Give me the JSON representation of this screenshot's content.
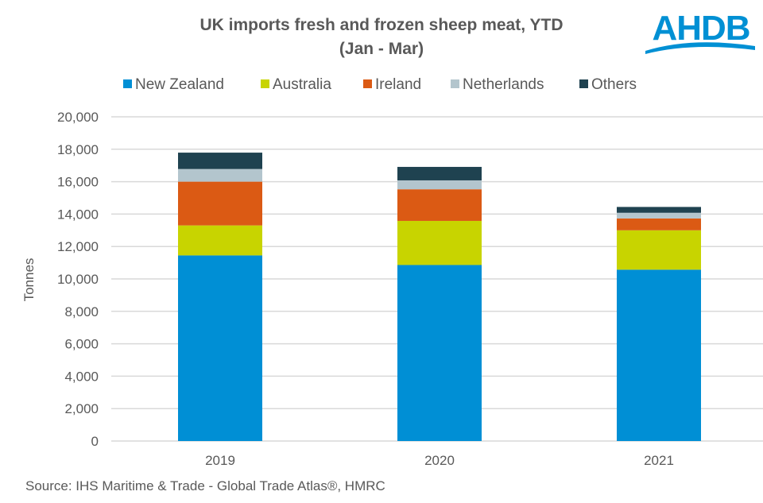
{
  "chart_data": {
    "type": "bar",
    "stacked": true,
    "title": "UK imports fresh and frozen sheep meat, YTD",
    "subtitle": "(Jan - Mar)",
    "xlabel": "",
    "ylabel": "Tonnes",
    "ylim": [
      0,
      20000
    ],
    "yticks": [
      0,
      2000,
      4000,
      6000,
      8000,
      10000,
      12000,
      14000,
      16000,
      18000,
      20000
    ],
    "ytick_labels": [
      "0",
      "2,000",
      "4,000",
      "6,000",
      "8,000",
      "10,000",
      "12,000",
      "14,000",
      "16,000",
      "18,000",
      "20,000"
    ],
    "categories": [
      "2019",
      "2020",
      "2021"
    ],
    "series": [
      {
        "name": "New Zealand",
        "color": "#008fd5",
        "values": [
          11450,
          10860,
          10570
        ]
      },
      {
        "name": "Australia",
        "color": "#c8d400",
        "values": [
          1850,
          2720,
          2430
        ]
      },
      {
        "name": "Ireland",
        "color": "#db5a14",
        "values": [
          2700,
          1950,
          730
        ]
      },
      {
        "name": "Netherlands",
        "color": "#b3c5cd",
        "values": [
          780,
          550,
          350
        ]
      },
      {
        "name": "Others",
        "color": "#1f4250",
        "values": [
          1010,
          830,
          360
        ]
      }
    ],
    "legend": "top",
    "grid": true,
    "source": "Source: IHS Maritime & Trade - Global Trade Atlas®, HMRC"
  },
  "logo": {
    "text": "AHDB",
    "color": "#0090d4"
  }
}
